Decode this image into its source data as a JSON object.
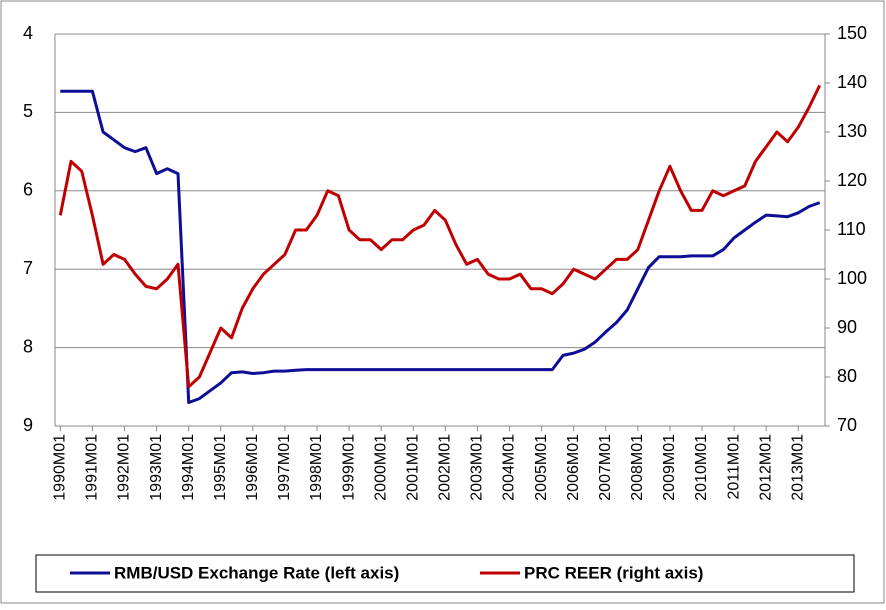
{
  "chart_data": {
    "type": "line",
    "categories": [
      "1990M01",
      null,
      null,
      "1991M01",
      null,
      null,
      "1992M01",
      null,
      null,
      "1993M01",
      null,
      null,
      "1994M01",
      null,
      null,
      "1995M01",
      null,
      null,
      "1996M01",
      null,
      null,
      "1997M01",
      null,
      null,
      "1998M01",
      null,
      null,
      "1999M01",
      null,
      null,
      "2000M01",
      null,
      null,
      "2001M01",
      null,
      null,
      "2002M01",
      null,
      null,
      "2003M01",
      null,
      null,
      "2004M01",
      null,
      null,
      "2005M01",
      null,
      null,
      "2006M01",
      null,
      null,
      "2007M01",
      null,
      null,
      "2008M01",
      null,
      null,
      "2009M01",
      null,
      null,
      "2010M01",
      null,
      null,
      "2011M01",
      null,
      null,
      "2012M01",
      null,
      null,
      "2013M01",
      null,
      null
    ],
    "series": [
      {
        "name": "RMB/USD Exchange Rate (left axis)",
        "color": "#0d0d96",
        "axis": "y",
        "values": [
          4.73,
          4.73,
          4.73,
          4.73,
          5.25,
          5.35,
          5.45,
          5.5,
          5.45,
          5.78,
          5.72,
          5.78,
          8.7,
          8.65,
          8.55,
          8.45,
          8.32,
          8.31,
          8.33,
          8.32,
          8.3,
          8.3,
          8.29,
          8.28,
          8.28,
          8.28,
          8.28,
          8.28,
          8.28,
          8.28,
          8.28,
          8.28,
          8.28,
          8.28,
          8.28,
          8.28,
          8.28,
          8.28,
          8.28,
          8.28,
          8.28,
          8.28,
          8.28,
          8.28,
          8.28,
          8.28,
          8.28,
          8.1,
          8.07,
          8.02,
          7.93,
          7.8,
          7.68,
          7.52,
          7.25,
          6.98,
          6.84,
          6.84,
          6.84,
          6.83,
          6.83,
          6.83,
          6.75,
          6.6,
          6.5,
          6.4,
          6.31,
          6.32,
          6.33,
          6.28,
          6.2,
          6.15
        ]
      },
      {
        "name": "PRC REER (right axis)",
        "color": "#c00000",
        "axis": "y2",
        "values": [
          113,
          124,
          122,
          113,
          103,
          105,
          104,
          101,
          98.5,
          98,
          100,
          103,
          78,
          80,
          85,
          90,
          88,
          94,
          98,
          101,
          103,
          105,
          110,
          110,
          113,
          118,
          117,
          110,
          108,
          108,
          106,
          108,
          108,
          110,
          111,
          114,
          112,
          107,
          103,
          104,
          101,
          100,
          100,
          101,
          98,
          98,
          97,
          99,
          102,
          101,
          100,
          102,
          104,
          104,
          106,
          112,
          118,
          123,
          118,
          114,
          114,
          118,
          117,
          118,
          119,
          124,
          127,
          130,
          128,
          131,
          135,
          139.5
        ]
      }
    ],
    "ylim": [
      4,
      9
    ],
    "y_inverted": true,
    "yticks": [
      4,
      5,
      6,
      7,
      8,
      9
    ],
    "y2lim": [
      70,
      150
    ],
    "y2ticks": [
      70,
      80,
      90,
      100,
      110,
      120,
      130,
      140,
      150
    ],
    "grid": true
  }
}
